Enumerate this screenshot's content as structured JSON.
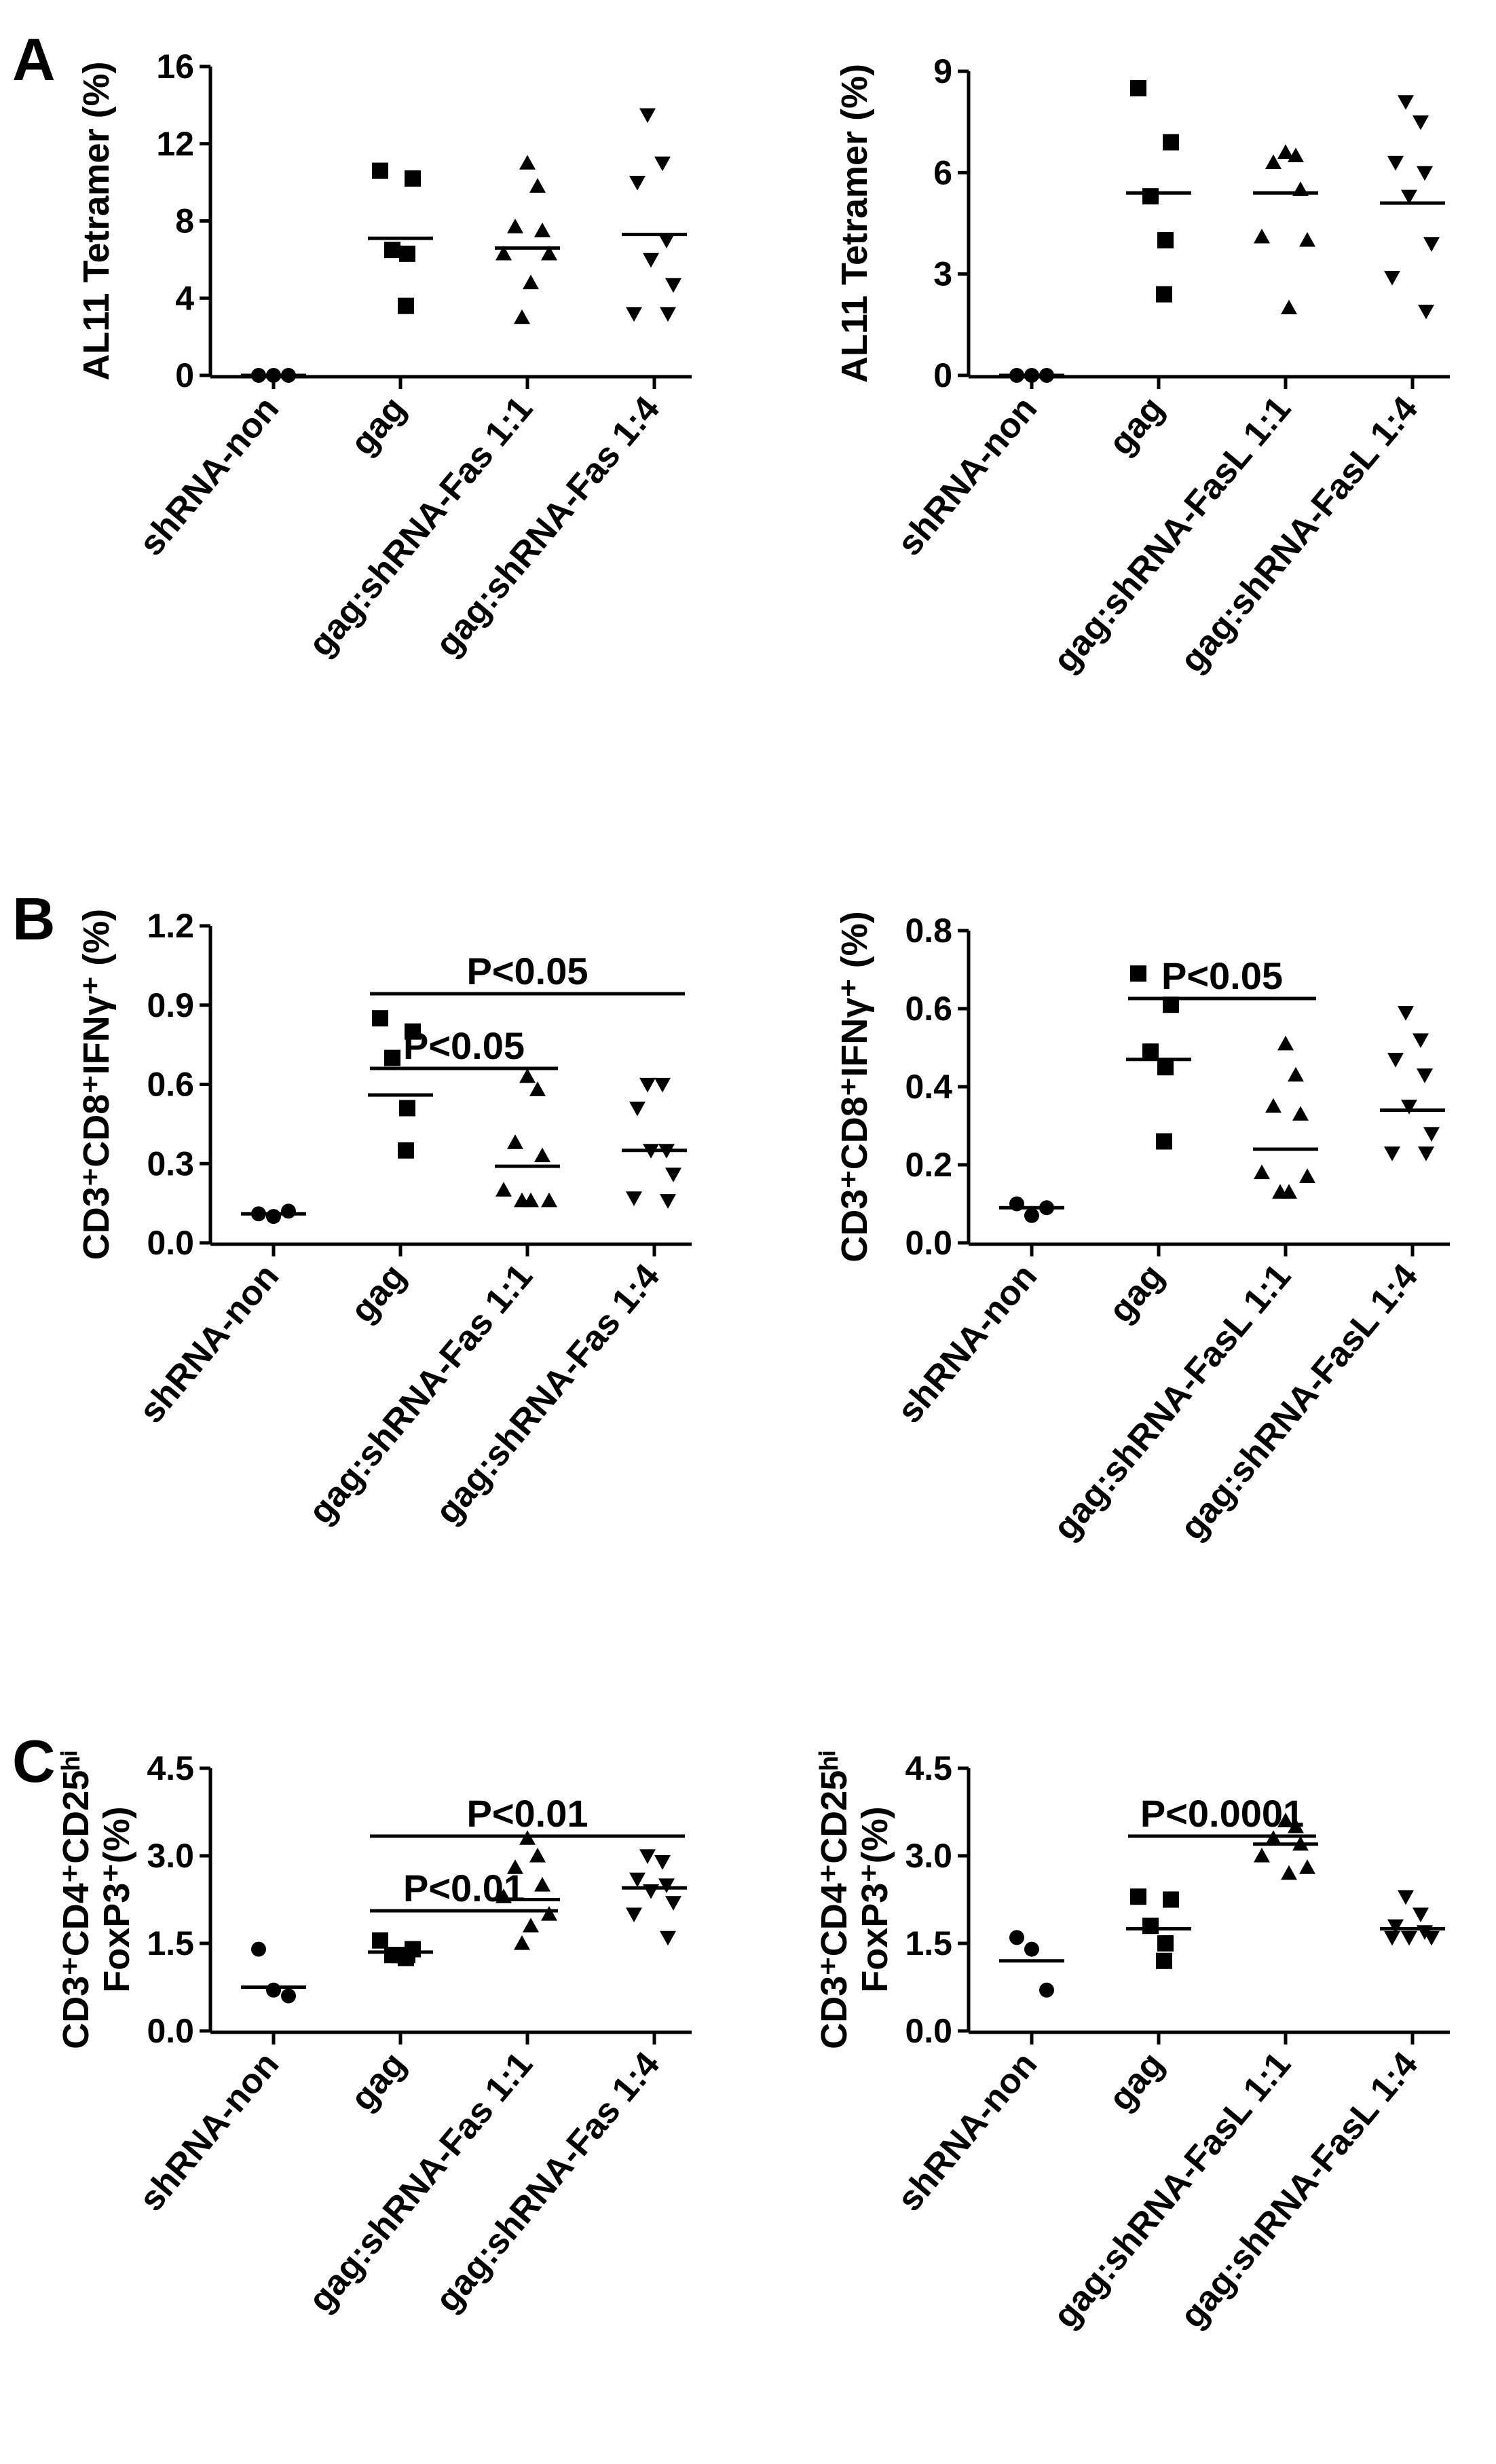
{
  "chart_data": [
    {
      "type": "scatter",
      "panel": "A",
      "ylabel": [
        "AL11 Tetramer (%)"
      ],
      "categories": [
        "shRNA-non",
        "gag",
        "gag:shRNA-Fas 1:1",
        "gag:shRNA-Fas 1:4"
      ],
      "markers": [
        "circle",
        "square",
        "triangle",
        "triangle-down"
      ],
      "color": "#000000",
      "values": [
        [
          0,
          0,
          0
        ],
        [
          10.6,
          10.2,
          6.5,
          6.3,
          3.6
        ],
        [
          11,
          9.8,
          7.7,
          7.5,
          6.3,
          6.3,
          4.8,
          3
        ],
        [
          13.5,
          11,
          10,
          7,
          6,
          4.7,
          3.2,
          3.2
        ]
      ],
      "means": [
        0,
        7.1,
        6.6,
        7.3
      ],
      "ylim": [
        0,
        16
      ],
      "yticks": [
        0,
        4,
        8,
        12,
        16
      ],
      "annotations": []
    },
    {
      "type": "scatter",
      "ylabel": [
        "AL11 Tetramer (%)"
      ],
      "categories": [
        "shRNA-non",
        "gag",
        "gag:shRNA-FasL 1:1",
        "gag:shRNA-FasL 1:4"
      ],
      "markers": [
        "circle",
        "square",
        "triangle",
        "triangle-down"
      ],
      "color": "#000000",
      "values": [
        [
          0,
          0,
          0
        ],
        [
          8.5,
          6.9,
          5.3,
          4,
          2.4
        ],
        [
          6.6,
          6.5,
          6.3,
          5.5,
          4.1,
          4,
          2
        ],
        [
          8.1,
          7.5,
          6.3,
          6,
          5.3,
          3.9,
          2.9,
          1.9
        ]
      ],
      "means": [
        0,
        5.4,
        5.4,
        5.1
      ],
      "ylim": [
        0,
        9
      ],
      "yticks": [
        0,
        3,
        6,
        9
      ],
      "annotations": []
    },
    {
      "type": "scatter",
      "panel": "B",
      "ylabel": [
        "CD3⁺CD8⁺IFNγ⁺ (%)"
      ],
      "categories": [
        "shRNA-non",
        "gag",
        "gag:shRNA-Fas 1:1",
        "gag:shRNA-Fas 1:4"
      ],
      "markers": [
        "circle",
        "square",
        "triangle",
        "triangle-down"
      ],
      "color": "#000000",
      "values": [
        [
          0.11,
          0.1,
          0.12
        ],
        [
          0.85,
          0.8,
          0.7,
          0.51,
          0.35
        ],
        [
          0.63,
          0.58,
          0.38,
          0.33,
          0.2,
          0.16,
          0.16,
          0.16
        ],
        [
          0.6,
          0.6,
          0.51,
          0.35,
          0.35,
          0.26,
          0.17,
          0.16
        ]
      ],
      "means": [
        0.11,
        0.56,
        0.29,
        0.35
      ],
      "ylim": [
        0,
        1.2
      ],
      "yticks": [
        {
          "value": 0,
          "label": "0.0"
        },
        0.3,
        0.6,
        0.9,
        1.2
      ],
      "annotations": [
        {
          "text": "P<0.05",
          "from": 1,
          "to": 2
        },
        {
          "text": "P<0.05",
          "from": 1,
          "to": 3
        }
      ]
    },
    {
      "type": "scatter",
      "ylabel": [
        "CD3⁺CD8⁺IFNγ⁺ (%)"
      ],
      "categories": [
        "shRNA-non",
        "gag",
        "gag:shRNA-FasL 1:1",
        "gag:shRNA-FasL 1:4"
      ],
      "markers": [
        "circle",
        "square",
        "triangle",
        "triangle-down"
      ],
      "color": "#000000",
      "values": [
        [
          0.1,
          0.07,
          0.09
        ],
        [
          0.69,
          0.61,
          0.49,
          0.45,
          0.26
        ],
        [
          0.51,
          0.43,
          0.35,
          0.33,
          0.18,
          0.17,
          0.13,
          0.13
        ],
        [
          0.59,
          0.52,
          0.47,
          0.43,
          0.35,
          0.28,
          0.23,
          0.23
        ]
      ],
      "means": [
        0.09,
        0.47,
        0.24,
        0.34
      ],
      "ylim": [
        0,
        0.8
      ],
      "yticks": [
        {
          "value": 0,
          "label": "0.0"
        },
        0.2,
        0.4,
        0.6,
        0.8
      ],
      "annotations": [
        {
          "text": "P<0.05",
          "from": 1,
          "to": 2
        }
      ]
    },
    {
      "type": "scatter",
      "panel": "C",
      "ylabel": [
        "CD3⁺CD4⁺CD25ʰⁱ",
        "FoxP3⁺(%)"
      ],
      "categories": [
        "shRNA-non",
        "gag",
        "gag:shRNA-Fas 1:1",
        "gag:shRNA-Fas 1:4"
      ],
      "markers": [
        "circle",
        "square",
        "triangle",
        "triangle-down"
      ],
      "color": "#000000",
      "values": [
        [
          1.4,
          0.7,
          0.6
        ],
        [
          1.55,
          1.4,
          1.3,
          1.3,
          1.25,
          1.3
        ],
        [
          3.3,
          3.0,
          2.8,
          2.5,
          2.3,
          2.0,
          1.8,
          1.5
        ],
        [
          3.0,
          2.9,
          2.6,
          2.5,
          2.4,
          2.2,
          2.0,
          1.6
        ]
      ],
      "means": [
        0.75,
        1.35,
        2.25,
        2.45
      ],
      "ylim": [
        0,
        4.5
      ],
      "yticks": [
        {
          "value": 0,
          "label": "0.0"
        },
        1.5,
        {
          "value": 3,
          "label": "3.0"
        },
        4.5
      ],
      "annotations": [
        {
          "text": "P<0.01",
          "from": 1,
          "to": 2
        },
        {
          "text": "P<0.01",
          "from": 1,
          "to": 3
        }
      ]
    },
    {
      "type": "scatter",
      "ylabel": [
        "CD3⁺CD4⁺CD25ʰⁱ",
        "FoxP3⁺(%)"
      ],
      "categories": [
        "shRNA-non",
        "gag",
        "gag:shRNA-FasL 1:1",
        "gag:shRNA-FasL 1:4"
      ],
      "markers": [
        "circle",
        "square",
        "triangle",
        "triangle-down"
      ],
      "color": "#000000",
      "values": [
        [
          1.6,
          1.4,
          0.7
        ],
        [
          2.3,
          2.25,
          1.8,
          1.5,
          1.2
        ],
        [
          3.6,
          3.5,
          3.3,
          3.2,
          3.0,
          2.8,
          2.7
        ],
        [
          2.3,
          2.0,
          1.8,
          1.7,
          1.6,
          1.6,
          1.6
        ]
      ],
      "means": [
        1.2,
        1.75,
        3.2,
        1.75
      ],
      "ylim": [
        0,
        4.5
      ],
      "yticks": [
        {
          "value": 0,
          "label": "0.0"
        },
        1.5,
        {
          "value": 3,
          "label": "3.0"
        },
        4.5
      ],
      "annotations": [
        {
          "text": "P<0.0001",
          "from": 1,
          "to": 2
        }
      ]
    }
  ]
}
